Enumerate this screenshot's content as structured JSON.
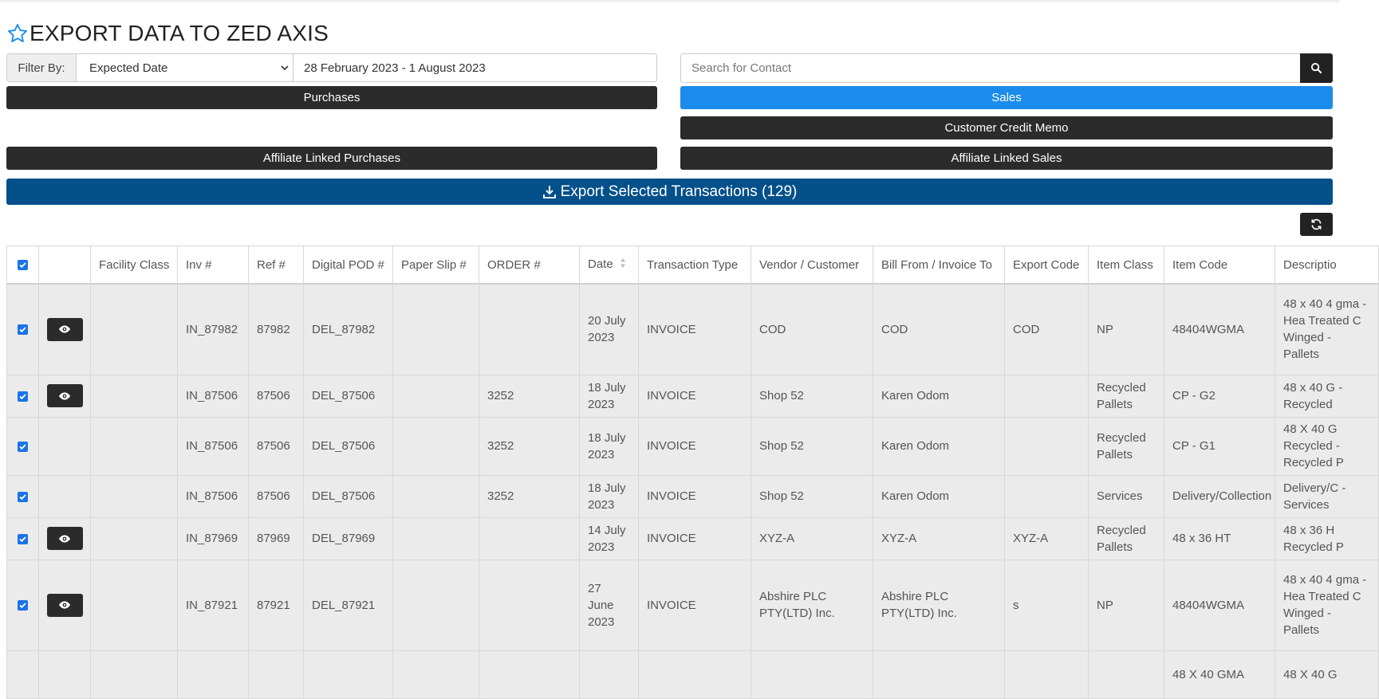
{
  "page": {
    "title": "EXPORT DATA TO ZED AXIS"
  },
  "filter": {
    "label": "Filter By:",
    "selected": "Expected Date",
    "date_range": "28 February 2023 - 1 August 2023"
  },
  "search": {
    "placeholder": "Search for Contact"
  },
  "buttons": {
    "purchases": "Purchases",
    "sales": "Sales",
    "customer_credit_memo": "Customer Credit Memo",
    "affiliate_linked_purchases": "Affiliate Linked Purchases",
    "affiliate_linked_sales": "Affiliate Linked Sales",
    "export": "Export Selected Transactions (129)"
  },
  "colors": {
    "active_tab": "#1b8ceb",
    "export_bar": "#03508a",
    "dark_button": "#2b2b2b"
  },
  "icons": [
    "star-icon",
    "chevron-down-icon",
    "search-icon",
    "download-icon",
    "refresh-icon",
    "eye-icon",
    "sort-icon",
    "checkbox-icon"
  ],
  "table": {
    "columns": [
      "Facility Class",
      "Inv #",
      "Ref #",
      "Digital POD #",
      "Paper Slip #",
      "ORDER #",
      "Date",
      "Transaction Type",
      "Vendor / Customer",
      "Bill From / Invoice To",
      "Export Code",
      "Item Class",
      "Item Code",
      "Descriptio"
    ],
    "rows": [
      {
        "checked": true,
        "view": true,
        "cells": [
          "",
          "IN_87982",
          "87982",
          "DEL_87982",
          "",
          "",
          "20 July 2023",
          "INVOICE",
          "COD",
          "COD",
          "COD",
          "NP",
          "48404WGMA",
          "48 x 40 4 gma - Hea Treated C Winged - Pallets"
        ]
      },
      {
        "checked": true,
        "view": true,
        "cells": [
          "",
          "IN_87506",
          "87506",
          "DEL_87506",
          "",
          "3252",
          "18 July 2023",
          "INVOICE",
          "Shop 52",
          "Karen Odom",
          "",
          "Recycled Pallets",
          "CP - G2",
          "48 x 40 G - Recycled"
        ]
      },
      {
        "checked": true,
        "view": false,
        "cells": [
          "",
          "IN_87506",
          "87506",
          "DEL_87506",
          "",
          "3252",
          "18 July 2023",
          "INVOICE",
          "Shop 52",
          "Karen Odom",
          "",
          "Recycled Pallets",
          "CP - G1",
          "48 X 40 G Recycled - Recycled P"
        ]
      },
      {
        "checked": true,
        "view": false,
        "cells": [
          "",
          "IN_87506",
          "87506",
          "DEL_87506",
          "",
          "3252",
          "18 July 2023",
          "INVOICE",
          "Shop 52",
          "Karen Odom",
          "",
          "Services",
          "Delivery/Collection",
          "Delivery/C - Services"
        ]
      },
      {
        "checked": true,
        "view": true,
        "cells": [
          "",
          "IN_87969",
          "87969",
          "DEL_87969",
          "",
          "",
          "14 July 2023",
          "INVOICE",
          "XYZ-A",
          "XYZ-A",
          "XYZ-A",
          "Recycled Pallets",
          "48 x 36 HT",
          "48 x 36 H Recycled P"
        ]
      },
      {
        "checked": true,
        "view": true,
        "cells": [
          "",
          "IN_87921",
          "87921",
          "DEL_87921",
          "",
          "",
          "27 June 2023",
          "INVOICE",
          "Abshire PLC PTY(LTD) Inc.",
          "Abshire PLC PTY(LTD) Inc.",
          "s",
          "NP",
          "48404WGMA",
          "48 x 40 4 gma - Hea Treated C Winged - Pallets"
        ]
      },
      {
        "checked": false,
        "view": false,
        "cells": [
          "",
          "",
          "",
          "",
          "",
          "",
          "",
          "",
          "",
          "",
          "",
          "",
          "48 X 40 GMA",
          "48 X 40 G"
        ]
      }
    ]
  }
}
